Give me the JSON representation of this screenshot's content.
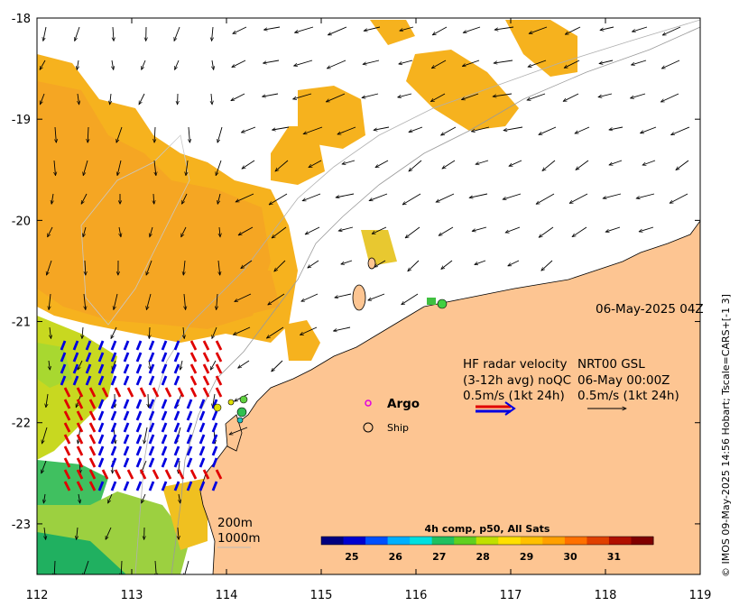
{
  "map": {
    "x_ticks": [
      "112",
      "113",
      "114",
      "115",
      "116",
      "117",
      "118",
      "119"
    ],
    "y_ticks": [
      "-18",
      "-19",
      "-20",
      "-21",
      "-22",
      "-23"
    ],
    "lon_range": [
      112,
      119
    ],
    "lat_range": [
      -23.5,
      -18
    ],
    "timestamp": "06-May-2025 04Z",
    "credit": "© IMOS 09-May-2025 14:56 Hobart; Tscale=CARS+[-1 3]",
    "contours": {
      "c200": "200m",
      "c1000": "1000m"
    }
  },
  "legend": {
    "hf_title": "HF radar velocity",
    "hf_avg": "(3-12h avg) noQC",
    "hf_scale": "0.5m/s (1kt 24h)",
    "nrt_title": "NRT00 GSL",
    "nrt_date": "06-May 00:00Z",
    "nrt_scale": "0.5m/s (1kt 24h)",
    "argo": "Argo",
    "ship": "Ship"
  },
  "colorbar": {
    "title": "4h comp, p50, All Sats",
    "ticks": [
      "25",
      "26",
      "27",
      "28",
      "29",
      "30",
      "31"
    ],
    "range": [
      24.3,
      31.9
    ],
    "colors": [
      "#00007f",
      "#0000d0",
      "#0050ff",
      "#00b0ff",
      "#00e0e0",
      "#20c060",
      "#60d020",
      "#c0e000",
      "#ffe000",
      "#ffc000",
      "#ffa000",
      "#ff7000",
      "#e04000",
      "#b01000",
      "#800000"
    ]
  }
}
